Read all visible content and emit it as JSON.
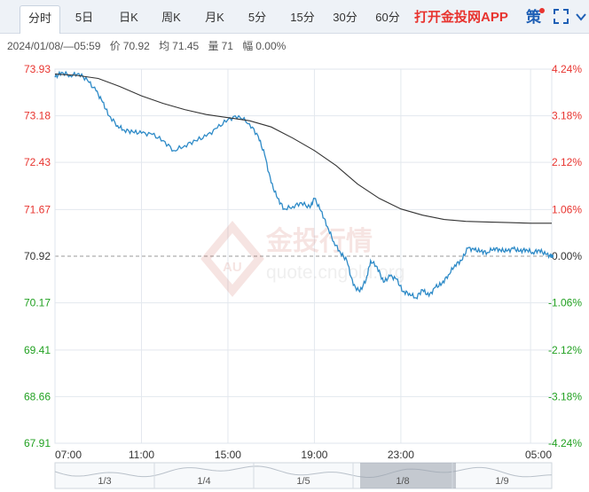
{
  "tabs": [
    {
      "label": "分时",
      "active": true
    },
    {
      "label": "5日",
      "active": false
    },
    {
      "label": "日K",
      "active": false
    },
    {
      "label": "周K",
      "active": false
    },
    {
      "label": "月K",
      "active": false
    },
    {
      "label": "5分",
      "active": false
    },
    {
      "label": "15分",
      "active": false
    },
    {
      "label": "30分",
      "active": false
    },
    {
      "label": "60分",
      "active": false
    }
  ],
  "cta_label": "打开金投网APP",
  "strategy_icon_text": "策",
  "info": {
    "datetime": "2024/01/08/—05:59",
    "price_label": "价",
    "price": "70.92",
    "avg_label": "均",
    "avg": "71.45",
    "volume_label": "量",
    "volume": "71",
    "range_label": "幅",
    "range": "0.00%"
  },
  "watermark": {
    "text": "金投行情",
    "url": "quote.cngold.org",
    "logo": "AU"
  },
  "colors": {
    "up": "#e8342f",
    "down": "#22a122",
    "base": "#333333",
    "price_line": "#2d8ac7",
    "avg_line": "#333333",
    "tab_bg": "#eef2f7",
    "grid": "#e3e8ee"
  },
  "chart_data": {
    "type": "line",
    "title": "",
    "xlabel": "",
    "ylabel": "",
    "x_ticks": [
      "07:00",
      "11:00",
      "15:00",
      "19:00",
      "23:00",
      "05:00"
    ],
    "ylim": [
      67.91,
      73.93
    ],
    "y_ticks": [
      {
        "value": 73.93,
        "label": "73.93",
        "pct": "4.24%",
        "side": "up"
      },
      {
        "value": 73.18,
        "label": "73.18",
        "pct": "3.18%",
        "side": "up"
      },
      {
        "value": 72.43,
        "label": "72.43",
        "pct": "2.12%",
        "side": "up"
      },
      {
        "value": 71.67,
        "label": "71.67",
        "pct": "1.06%",
        "side": "up"
      },
      {
        "value": 70.92,
        "label": "70.92",
        "pct": "0.00%",
        "side": "base"
      },
      {
        "value": 70.17,
        "label": "70.17",
        "pct": "-1.06%",
        "side": "down"
      },
      {
        "value": 69.41,
        "label": "69.41",
        "pct": "-2.12%",
        "side": "down"
      },
      {
        "value": 68.66,
        "label": "68.66",
        "pct": "-3.18%",
        "side": "down"
      },
      {
        "value": 67.91,
        "label": "67.91",
        "pct": "-4.24%",
        "side": "down"
      }
    ],
    "base_price": 70.92,
    "x_range_hours": [
      0,
      22.98
    ],
    "series": [
      {
        "x": [
          0,
          0.3,
          0.7,
          1.1,
          1.5,
          1.9,
          2.2,
          2.5,
          2.9,
          3.2,
          3.6,
          4.0,
          4.5,
          5.0,
          5.5,
          6.0,
          6.5,
          7.0,
          7.5,
          8.0,
          8.5,
          9.0,
          9.4,
          9.7,
          10.0,
          10.3,
          10.6,
          11.0,
          11.4,
          11.8,
          12.0,
          12.3,
          12.6,
          12.9,
          13.2,
          13.5,
          13.8,
          14.1,
          14.4,
          14.6,
          14.9,
          15.2,
          15.5,
          15.8,
          16.1,
          16.4,
          16.7,
          17.0,
          17.3,
          17.6,
          17.9,
          18.2,
          18.5,
          18.8,
          19.1,
          19.4,
          19.7,
          20.0,
          20.3,
          20.6,
          20.9,
          21.2,
          21.5,
          21.8,
          22.1,
          22.4,
          22.7,
          22.98
        ],
        "values": [
          73.8,
          73.88,
          73.83,
          73.86,
          73.75,
          73.58,
          73.4,
          73.18,
          73.02,
          72.95,
          72.92,
          72.9,
          72.88,
          72.78,
          72.62,
          72.7,
          72.78,
          72.85,
          72.98,
          73.12,
          73.18,
          73.05,
          72.85,
          72.55,
          72.1,
          71.85,
          71.68,
          71.72,
          71.78,
          71.7,
          71.85,
          71.65,
          71.4,
          71.15,
          70.98,
          70.85,
          70.45,
          70.35,
          70.55,
          70.85,
          70.75,
          70.5,
          70.6,
          70.55,
          70.35,
          70.32,
          70.25,
          70.38,
          70.28,
          70.42,
          70.48,
          70.62,
          70.78,
          70.85,
          71.05,
          71.02,
          71.0,
          70.98,
          71.05,
          71.02,
          71.0,
          71.04,
          71.0,
          71.03,
          70.98,
          71.02,
          70.95,
          70.92
        ]
      },
      {
        "x": [
          0,
          1.0,
          2.0,
          3.0,
          4.0,
          5.0,
          6.0,
          7.0,
          8.0,
          9.0,
          10.0,
          11.0,
          12.0,
          13.0,
          14.0,
          15.0,
          16.0,
          17.0,
          18.0,
          19.0,
          20.0,
          21.0,
          22.0,
          22.98
        ],
        "values": [
          73.85,
          73.83,
          73.78,
          73.65,
          73.5,
          73.38,
          73.28,
          73.2,
          73.15,
          73.1,
          73.0,
          72.82,
          72.62,
          72.38,
          72.08,
          71.85,
          71.68,
          71.58,
          71.51,
          71.48,
          71.47,
          71.46,
          71.45,
          71.45
        ]
      }
    ],
    "navigator_dates": [
      "1/3",
      "1/4",
      "1/5",
      "1/8",
      "1/9"
    ],
    "navigator_selected": "1/8"
  }
}
